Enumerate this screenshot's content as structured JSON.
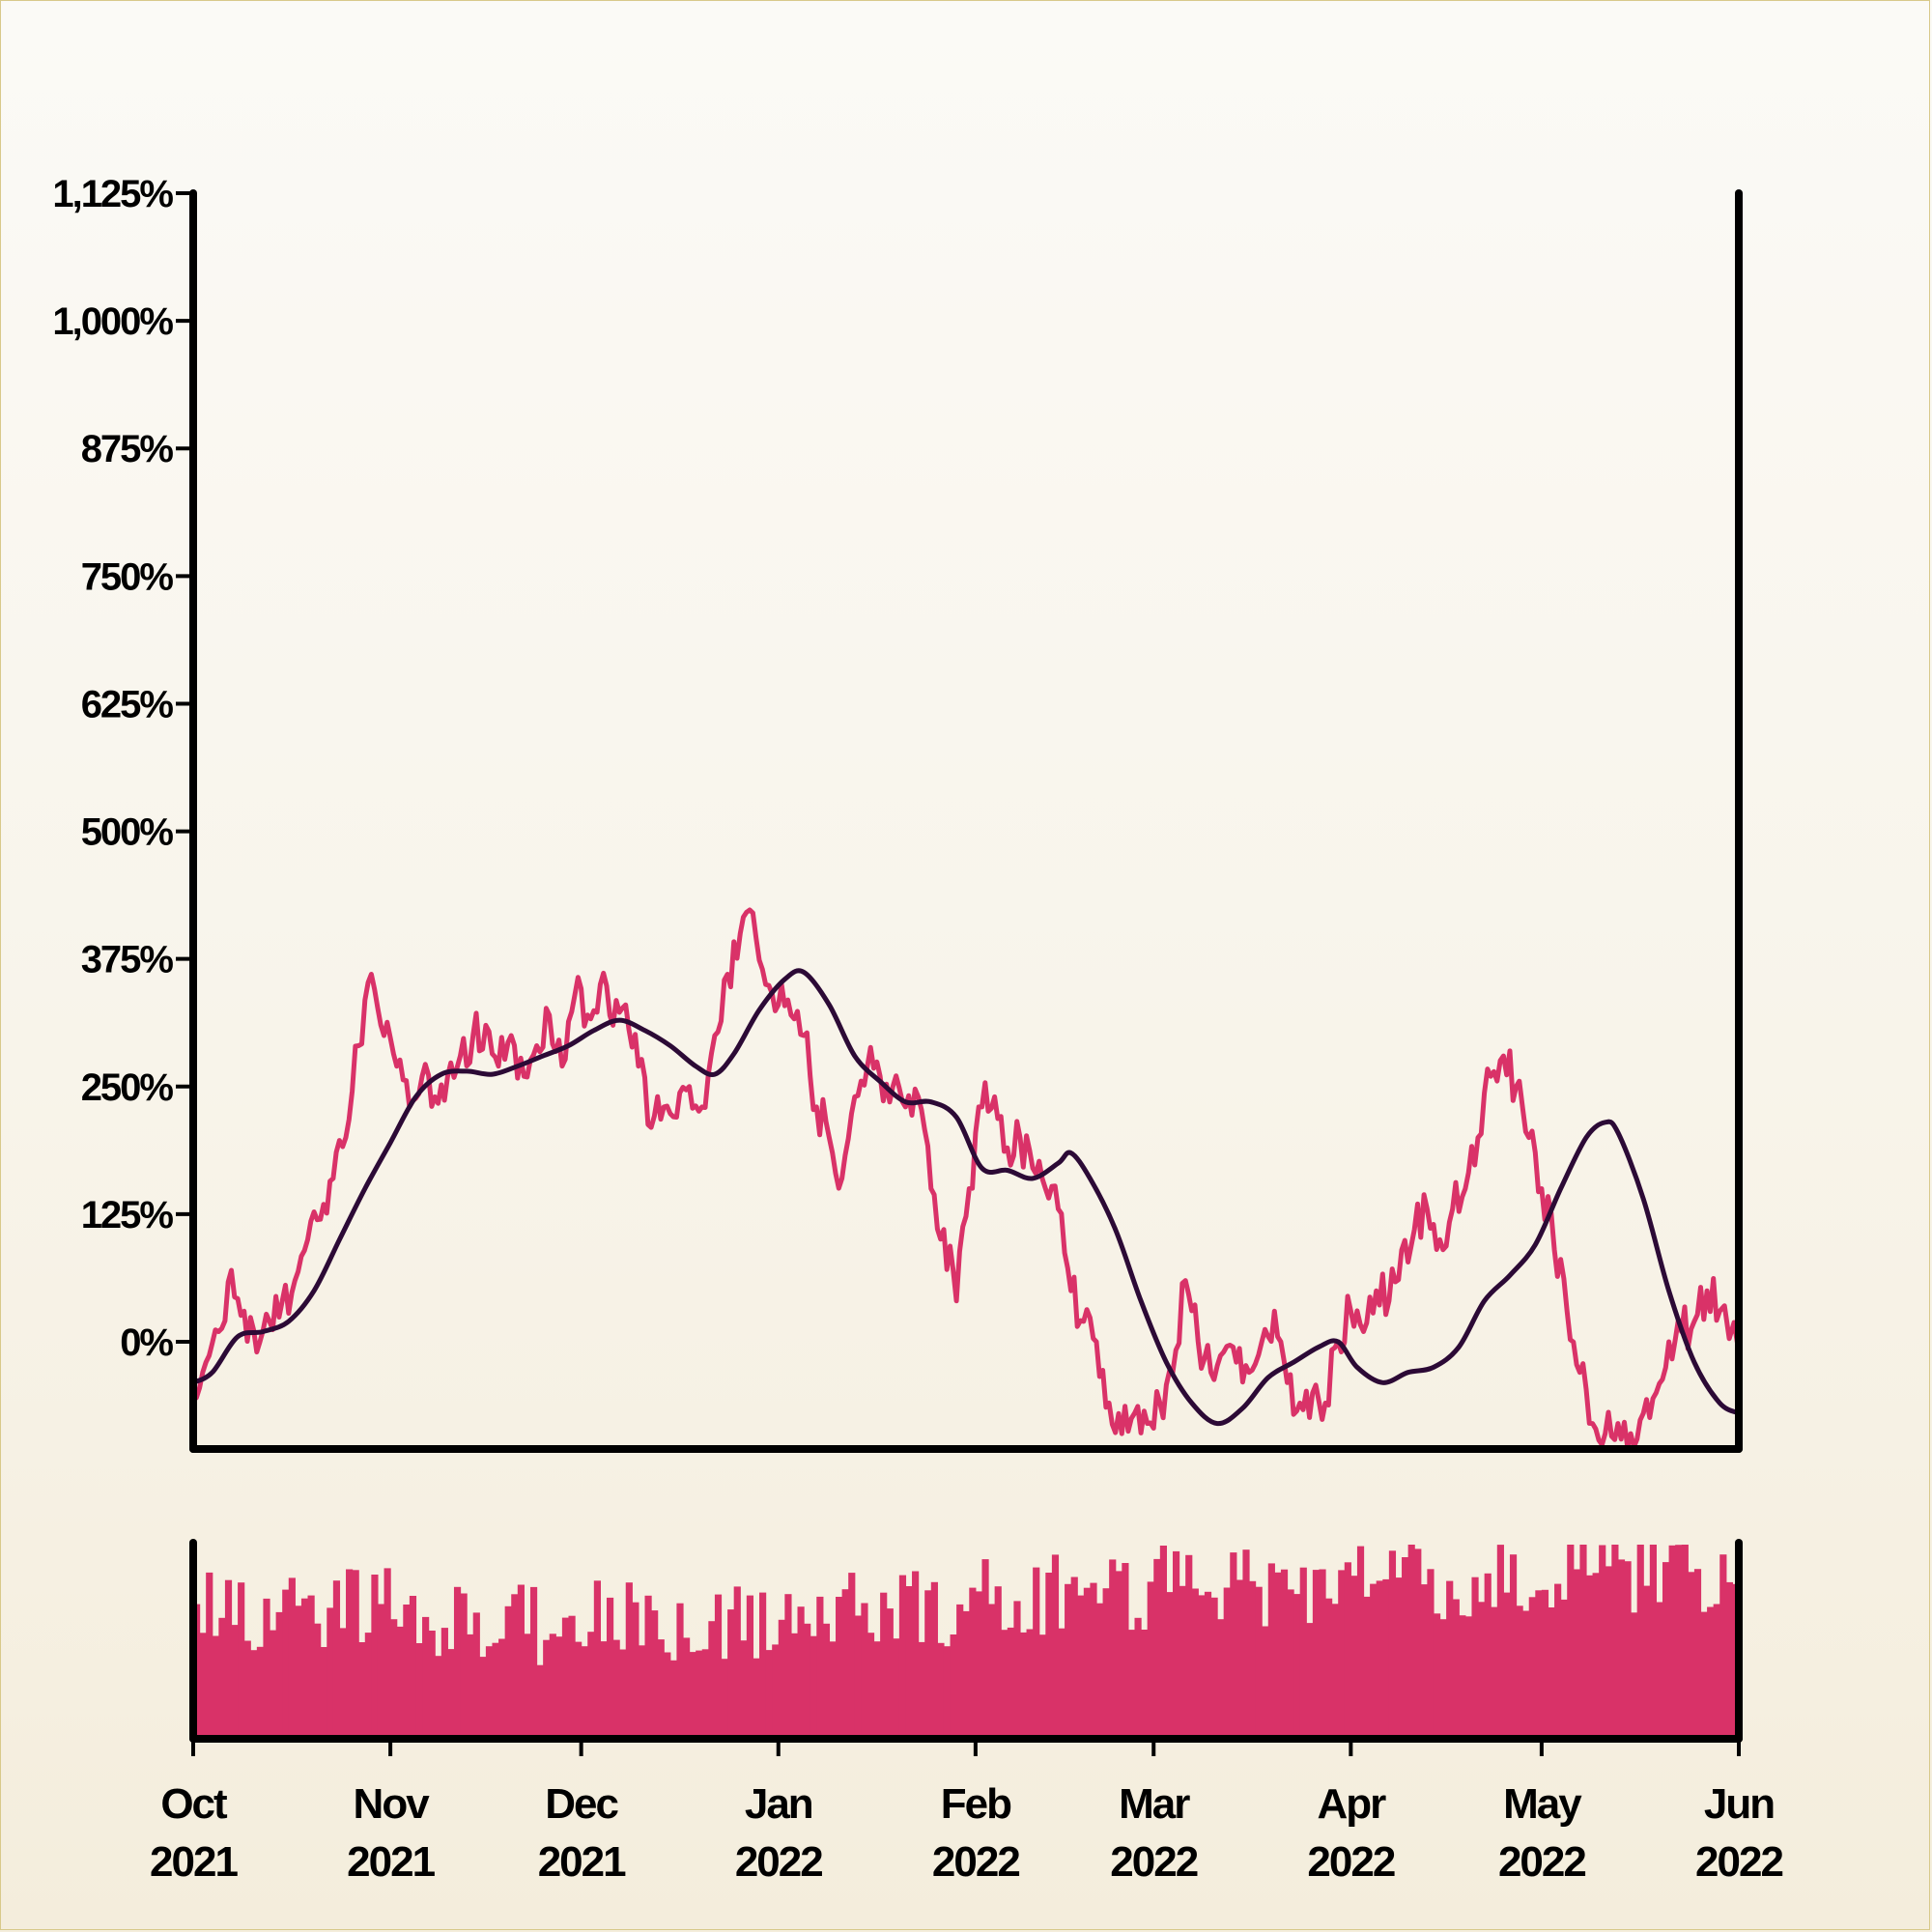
{
  "chart_data": {
    "type": "line",
    "title": "",
    "xlabel": "",
    "ylabel": "",
    "x_range": [
      "2021-10-01",
      "2022-06-01"
    ],
    "ylim": [
      -105,
      1125
    ],
    "y_ticks": [
      0,
      125,
      250,
      375,
      500,
      625,
      750,
      875,
      1000,
      1125
    ],
    "y_tick_labels": [
      "0%",
      "125%",
      "250%",
      "375%",
      "500%",
      "625%",
      "750%",
      "875%",
      "1,000%",
      "1,125%"
    ],
    "x_ticks": [
      {
        "date": "2021-10-01",
        "line1": "Oct",
        "line2": "2021"
      },
      {
        "date": "2021-11-01",
        "line1": "Nov",
        "line2": "2021"
      },
      {
        "date": "2021-12-01",
        "line1": "Dec",
        "line2": "2021"
      },
      {
        "date": "2022-01-01",
        "line1": "Jan",
        "line2": "2022"
      },
      {
        "date": "2022-02-01",
        "line1": "Feb",
        "line2": "2022"
      },
      {
        "date": "2022-03-01",
        "line1": "Mar",
        "line2": "2022"
      },
      {
        "date": "2022-04-01",
        "line1": "Apr",
        "line2": "2022"
      },
      {
        "date": "2022-05-01",
        "line1": "May",
        "line2": "2022"
      },
      {
        "date": "2022-06-01",
        "line1": "Jun",
        "line2": "2022"
      }
    ],
    "grid": false,
    "legend": "none",
    "colors": {
      "series": "#d93268",
      "moving_average": "#2c0a36",
      "volume": "#d93268",
      "axis": "#000000"
    },
    "series": [
      {
        "role": "daily",
        "points": [
          [
            "2021-10-01",
            -40
          ],
          [
            "2021-10-03",
            -20
          ],
          [
            "2021-10-05",
            10
          ],
          [
            "2021-10-07",
            70
          ],
          [
            "2021-10-09",
            30
          ],
          [
            "2021-10-11",
            -10
          ],
          [
            "2021-10-13",
            20
          ],
          [
            "2021-10-15",
            40
          ],
          [
            "2021-10-17",
            60
          ],
          [
            "2021-10-19",
            100
          ],
          [
            "2021-10-21",
            120
          ],
          [
            "2021-10-23",
            160
          ],
          [
            "2021-10-25",
            200
          ],
          [
            "2021-10-27",
            290
          ],
          [
            "2021-10-29",
            360
          ],
          [
            "2021-10-31",
            300
          ],
          [
            "2021-11-02",
            270
          ],
          [
            "2021-11-04",
            230
          ],
          [
            "2021-11-06",
            260
          ],
          [
            "2021-11-08",
            240
          ],
          [
            "2021-11-10",
            260
          ],
          [
            "2021-11-12",
            280
          ],
          [
            "2021-11-14",
            300
          ],
          [
            "2021-11-16",
            310
          ],
          [
            "2021-11-18",
            270
          ],
          [
            "2021-11-20",
            300
          ],
          [
            "2021-11-22",
            260
          ],
          [
            "2021-11-24",
            290
          ],
          [
            "2021-11-26",
            320
          ],
          [
            "2021-11-28",
            270
          ],
          [
            "2021-11-30",
            340
          ],
          [
            "2021-12-02",
            320
          ],
          [
            "2021-12-04",
            350
          ],
          [
            "2021-12-06",
            310
          ],
          [
            "2021-12-08",
            330
          ],
          [
            "2021-12-10",
            270
          ],
          [
            "2021-12-12",
            210
          ],
          [
            "2021-12-14",
            230
          ],
          [
            "2021-12-16",
            220
          ],
          [
            "2021-12-18",
            250
          ],
          [
            "2021-12-20",
            230
          ],
          [
            "2021-12-22",
            300
          ],
          [
            "2021-12-24",
            360
          ],
          [
            "2021-12-26",
            400
          ],
          [
            "2021-12-28",
            420
          ],
          [
            "2021-12-30",
            350
          ],
          [
            "2022-01-01",
            330
          ],
          [
            "2022-01-03",
            320
          ],
          [
            "2022-01-05",
            300
          ],
          [
            "2022-01-07",
            230
          ],
          [
            "2022-01-09",
            200
          ],
          [
            "2022-01-11",
            160
          ],
          [
            "2022-01-13",
            240
          ],
          [
            "2022-01-15",
            270
          ],
          [
            "2022-01-17",
            260
          ],
          [
            "2022-01-19",
            250
          ],
          [
            "2022-01-21",
            230
          ],
          [
            "2022-01-23",
            240
          ],
          [
            "2022-01-25",
            150
          ],
          [
            "2022-01-27",
            110
          ],
          [
            "2022-01-29",
            40
          ],
          [
            "2022-01-31",
            150
          ],
          [
            "2022-02-02",
            230
          ],
          [
            "2022-02-04",
            240
          ],
          [
            "2022-02-06",
            190
          ],
          [
            "2022-02-08",
            200
          ],
          [
            "2022-02-10",
            170
          ],
          [
            "2022-02-12",
            150
          ],
          [
            "2022-02-14",
            130
          ],
          [
            "2022-02-16",
            50
          ],
          [
            "2022-02-18",
            20
          ],
          [
            "2022-02-20",
            0
          ],
          [
            "2022-02-22",
            -60
          ],
          [
            "2022-02-24",
            -90
          ],
          [
            "2022-02-26",
            -70
          ],
          [
            "2022-02-28",
            -80
          ],
          [
            "2022-03-02",
            -60
          ],
          [
            "2022-03-04",
            -30
          ],
          [
            "2022-03-06",
            60
          ],
          [
            "2022-03-08",
            0
          ],
          [
            "2022-03-10",
            -30
          ],
          [
            "2022-03-12",
            -10
          ],
          [
            "2022-03-14",
            -20
          ],
          [
            "2022-03-16",
            -30
          ],
          [
            "2022-03-18",
            0
          ],
          [
            "2022-03-20",
            30
          ],
          [
            "2022-03-22",
            -40
          ],
          [
            "2022-03-24",
            -60
          ],
          [
            "2022-03-26",
            -50
          ],
          [
            "2022-03-28",
            -60
          ],
          [
            "2022-03-30",
            0
          ],
          [
            "2022-04-01",
            30
          ],
          [
            "2022-04-03",
            10
          ],
          [
            "2022-04-05",
            50
          ],
          [
            "2022-04-07",
            40
          ],
          [
            "2022-04-09",
            90
          ],
          [
            "2022-04-11",
            110
          ],
          [
            "2022-04-13",
            130
          ],
          [
            "2022-04-15",
            100
          ],
          [
            "2022-04-17",
            130
          ],
          [
            "2022-04-19",
            150
          ],
          [
            "2022-04-21",
            200
          ],
          [
            "2022-04-23",
            260
          ],
          [
            "2022-04-25",
            280
          ],
          [
            "2022-04-27",
            250
          ],
          [
            "2022-04-29",
            200
          ],
          [
            "2022-05-01",
            150
          ],
          [
            "2022-05-03",
            90
          ],
          [
            "2022-05-05",
            30
          ],
          [
            "2022-05-07",
            -30
          ],
          [
            "2022-05-09",
            -80
          ],
          [
            "2022-05-11",
            -90
          ],
          [
            "2022-05-13",
            -80
          ],
          [
            "2022-05-15",
            -90
          ],
          [
            "2022-05-17",
            -70
          ],
          [
            "2022-05-19",
            -50
          ],
          [
            "2022-05-21",
            0
          ],
          [
            "2022-05-23",
            10
          ],
          [
            "2022-05-25",
            20
          ],
          [
            "2022-05-27",
            50
          ],
          [
            "2022-05-29",
            30
          ],
          [
            "2022-06-01",
            -10
          ]
        ]
      },
      {
        "role": "moving-average",
        "points": [
          [
            "2021-10-01",
            -40
          ],
          [
            "2021-10-04",
            -30
          ],
          [
            "2021-10-08",
            5
          ],
          [
            "2021-10-12",
            10
          ],
          [
            "2021-10-16",
            20
          ],
          [
            "2021-10-20",
            50
          ],
          [
            "2021-10-24",
            100
          ],
          [
            "2021-10-28",
            150
          ],
          [
            "2021-11-01",
            195
          ],
          [
            "2021-11-05",
            240
          ],
          [
            "2021-11-09",
            262
          ],
          [
            "2021-11-13",
            265
          ],
          [
            "2021-11-17",
            262
          ],
          [
            "2021-11-21",
            270
          ],
          [
            "2021-11-25",
            280
          ],
          [
            "2021-11-29",
            290
          ],
          [
            "2021-12-03",
            305
          ],
          [
            "2021-12-07",
            315
          ],
          [
            "2021-12-11",
            305
          ],
          [
            "2021-12-15",
            290
          ],
          [
            "2021-12-19",
            270
          ],
          [
            "2021-12-22",
            262
          ],
          [
            "2021-12-25",
            282
          ],
          [
            "2021-12-29",
            325
          ],
          [
            "2022-01-02",
            355
          ],
          [
            "2022-01-05",
            362
          ],
          [
            "2022-01-09",
            330
          ],
          [
            "2022-01-13",
            280
          ],
          [
            "2022-01-17",
            255
          ],
          [
            "2022-01-21",
            235
          ],
          [
            "2022-01-25",
            235
          ],
          [
            "2022-01-29",
            220
          ],
          [
            "2022-02-02",
            170
          ],
          [
            "2022-02-06",
            168
          ],
          [
            "2022-02-10",
            160
          ],
          [
            "2022-02-14",
            175
          ],
          [
            "2022-02-16",
            185
          ],
          [
            "2022-02-19",
            160
          ],
          [
            "2022-02-23",
            110
          ],
          [
            "2022-02-27",
            40
          ],
          [
            "2022-03-03",
            -20
          ],
          [
            "2022-03-07",
            -60
          ],
          [
            "2022-03-11",
            -80
          ],
          [
            "2022-03-15",
            -65
          ],
          [
            "2022-03-19",
            -35
          ],
          [
            "2022-03-23",
            -20
          ],
          [
            "2022-03-27",
            -5
          ],
          [
            "2022-03-30",
            0
          ],
          [
            "2022-04-02",
            -25
          ],
          [
            "2022-04-06",
            -40
          ],
          [
            "2022-04-10",
            -30
          ],
          [
            "2022-04-14",
            -25
          ],
          [
            "2022-04-18",
            -5
          ],
          [
            "2022-04-22",
            40
          ],
          [
            "2022-04-26",
            65
          ],
          [
            "2022-04-30",
            95
          ],
          [
            "2022-05-04",
            150
          ],
          [
            "2022-05-08",
            200
          ],
          [
            "2022-05-11",
            215
          ],
          [
            "2022-05-13",
            205
          ],
          [
            "2022-05-17",
            140
          ],
          [
            "2022-05-21",
            50
          ],
          [
            "2022-05-25",
            -20
          ],
          [
            "2022-05-29",
            -60
          ],
          [
            "2022-06-01",
            -70
          ]
        ]
      }
    ],
    "volume": {
      "type": "bar",
      "seed": 20211001,
      "mean_by_month": [
        0.66,
        0.58,
        0.6,
        0.68,
        0.74,
        0.78,
        0.8,
        0.84
      ],
      "ylim": [
        0,
        1
      ]
    }
  }
}
